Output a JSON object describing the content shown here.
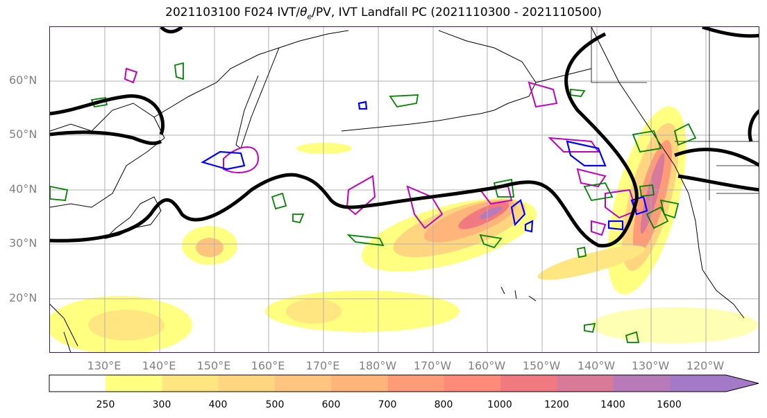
{
  "title": {
    "prefix": "2021103100 F024 IVT/",
    "theta": "θ",
    "theta_sub": "e",
    "suffix": "/PV, IVT Landfall PC (2021110300 - 2021110500)"
  },
  "map": {
    "lat_labels": [
      "60°N",
      "50°N",
      "40°N",
      "30°N",
      "20°N"
    ],
    "lon_labels": [
      "130°E",
      "140°E",
      "150°E",
      "160°E",
      "170°E",
      "180°W",
      "170°W",
      "160°W",
      "150°W",
      "140°W",
      "130°W",
      "120°W"
    ],
    "contour_colors": {
      "pv_line": "#000000",
      "theta_e": "#008000",
      "blue": "#0000ff",
      "magenta": "#c000c0"
    }
  },
  "colorbar": {
    "ticks": [
      "250",
      "300",
      "400",
      "500",
      "600",
      "700",
      "800",
      "1000",
      "1200",
      "1400",
      "1600"
    ],
    "colors": [
      "#ffff80",
      "#ffe680",
      "#ffd580",
      "#ffc580",
      "#ffb47a",
      "#ff9c78",
      "#ff8a7a",
      "#f07a80",
      "#d87a98",
      "#b87ab8",
      "#a47ac8"
    ],
    "extend": "max"
  }
}
